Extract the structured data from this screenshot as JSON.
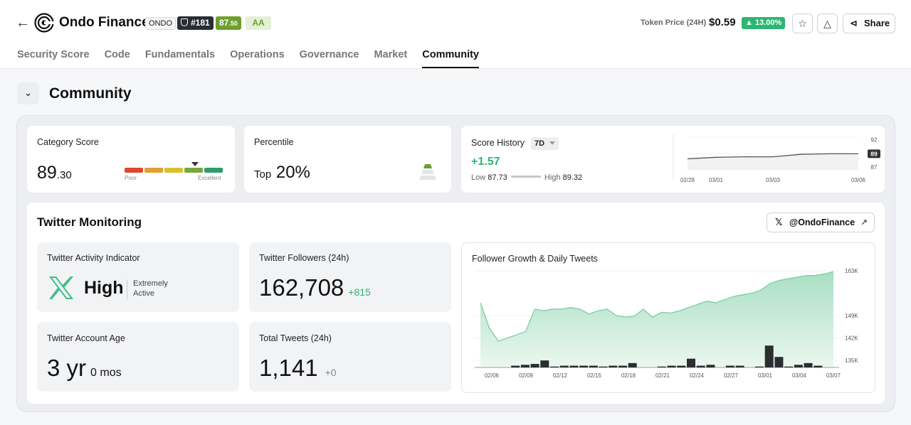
{
  "header": {
    "project_name": "Ondo Finance",
    "ticker": "ONDO",
    "rank": "#181",
    "score_main": "87",
    "score_decimal": ".50",
    "grade": "AA",
    "token_price_label": "Token Price (24H)",
    "token_price": "$0.59",
    "price_change": "13.00%",
    "share_label": "Share"
  },
  "tabs": [
    {
      "label": "Security Score"
    },
    {
      "label": "Code"
    },
    {
      "label": "Fundamentals"
    },
    {
      "label": "Operations"
    },
    {
      "label": "Governance"
    },
    {
      "label": "Market"
    },
    {
      "label": "Community",
      "active": true
    }
  ],
  "section": {
    "title": "Community"
  },
  "category_score": {
    "label": "Category Score",
    "value": "89",
    "decimal": ".30",
    "scale_low": "Poor",
    "scale_high": "Excellent",
    "colors": [
      "#e0452f",
      "#e0a12f",
      "#d9c02c",
      "#7aa73a",
      "#2c9e6a"
    ]
  },
  "percentile": {
    "label": "Percentile",
    "prefix": "Top",
    "value": "20%"
  },
  "score_history": {
    "label": "Score History",
    "range": "7D",
    "delta": "+1.57",
    "low_label": "Low",
    "low_value": "87.73",
    "high_label": "High",
    "high_value": "89.32",
    "chart_data": {
      "type": "line",
      "x": [
        "02/28",
        "03/01",
        "03/02",
        "03/03",
        "03/04",
        "03/05",
        "03/06"
      ],
      "values": [
        88.2,
        88.5,
        88.6,
        88.6,
        89.1,
        89.2,
        89.2
      ],
      "y_ticks": [
        "92",
        "89",
        "87"
      ],
      "current_label": "89",
      "x_tick_labels": [
        "02/28",
        "03/01",
        "03/03",
        "03/06"
      ],
      "ylim": [
        86,
        92.5
      ]
    }
  },
  "twitter": {
    "title": "Twitter Monitoring",
    "handle": "@OndoFinance",
    "activity": {
      "label": "Twitter Activity Indicator",
      "value": "High",
      "desc_line1": "Extremely",
      "desc_line2": "Active"
    },
    "followers": {
      "label": "Twitter Followers (24h)",
      "value": "162,708",
      "delta": "+815"
    },
    "account_age": {
      "label": "Twitter Account Age",
      "years": "3 yr",
      "months": "0 mos"
    },
    "tweets": {
      "label": "Total Tweets (24h)",
      "value": "1,141",
      "delta": "+0"
    }
  },
  "growth_chart": {
    "title": "Follower Growth & Daily Tweets",
    "chart_data": {
      "type": "area",
      "x_tick_labels": [
        "02/06",
        "02/09",
        "02/12",
        "02/15",
        "02/18",
        "02/21",
        "02/24",
        "02/27",
        "03/01",
        "03/04",
        "03/07"
      ],
      "y_tick_labels": [
        "163K",
        "149K",
        "142K",
        "135K"
      ],
      "y_tick_values": [
        163,
        149,
        142,
        135
      ],
      "followers_k": [
        153,
        145,
        141,
        142,
        143,
        144,
        151,
        150.5,
        151,
        151,
        151.5,
        151,
        149.5,
        150.5,
        151,
        149,
        148.5,
        148.8,
        151,
        148.5,
        150,
        149.8,
        150.5,
        151.5,
        152.5,
        153.5,
        153,
        154,
        155,
        155.5,
        156,
        157,
        159,
        160,
        160.5,
        161,
        161.5,
        161.5,
        162,
        162.7
      ],
      "tweets": [
        0,
        0,
        0,
        2,
        3,
        4,
        8,
        1,
        2,
        2,
        2,
        2,
        1,
        2,
        2,
        5,
        0,
        0,
        1,
        2,
        2,
        10,
        2,
        3,
        0,
        2,
        2,
        0,
        1,
        25,
        12,
        1,
        3,
        5,
        2,
        0
      ],
      "ylim": [
        133,
        165
      ]
    }
  }
}
